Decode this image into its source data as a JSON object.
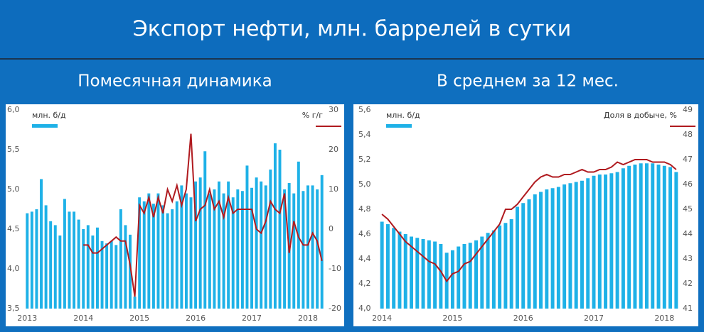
{
  "header": {
    "title": "Экспорт нефти, млн. баррелей в сутки"
  },
  "chart_data": [
    {
      "type": "bar",
      "title": "Помесячная динамика",
      "categories": [
        "2013",
        null,
        null,
        null,
        null,
        null,
        null,
        null,
        null,
        null,
        null,
        null,
        "2014",
        null,
        null,
        null,
        null,
        null,
        null,
        null,
        null,
        null,
        null,
        null,
        "2015",
        null,
        null,
        null,
        null,
        null,
        null,
        null,
        null,
        null,
        null,
        null,
        "2016",
        null,
        null,
        null,
        null,
        null,
        null,
        null,
        null,
        null,
        null,
        null,
        "2017",
        null,
        null,
        null,
        null,
        null,
        null,
        null,
        null,
        null,
        null,
        null,
        "2018",
        null,
        null,
        null
      ],
      "series": [
        {
          "name": "млн. б/д",
          "type": "bar",
          "color": "#1eb1e7",
          "values": [
            4.7,
            4.72,
            4.75,
            5.13,
            4.8,
            4.6,
            4.55,
            4.42,
            4.88,
            4.72,
            4.72,
            4.62,
            4.5,
            4.55,
            4.42,
            4.52,
            4.35,
            4.32,
            4.35,
            4.3,
            4.75,
            4.55,
            4.43,
            3.65,
            4.9,
            4.85,
            4.95,
            4.82,
            4.95,
            4.8,
            4.7,
            4.75,
            4.85,
            5.05,
            4.95,
            4.9,
            5.1,
            5.15,
            5.48,
            4.95,
            5.0,
            5.1,
            4.95,
            5.1,
            4.9,
            5.0,
            4.98,
            5.3,
            5.02,
            5.15,
            5.1,
            5.05,
            5.25,
            5.58,
            5.5,
            5.0,
            5.08,
            4.95,
            5.35,
            4.98,
            5.05,
            5.05,
            5.0,
            5.18
          ]
        },
        {
          "name": "% г/г",
          "type": "line",
          "axis": "y2",
          "color": "#b01a1f",
          "values": [
            null,
            null,
            null,
            null,
            null,
            null,
            null,
            null,
            null,
            null,
            null,
            null,
            -4,
            -4,
            -6,
            -6,
            -5,
            -4,
            -3,
            -2,
            -3,
            -3,
            -9,
            -17,
            6,
            4,
            8,
            3,
            8,
            4,
            10,
            7,
            11,
            6,
            10,
            24,
            2,
            5,
            6,
            10,
            5,
            7,
            3,
            8,
            4,
            5,
            5,
            5,
            5,
            0,
            -1,
            2,
            7,
            5,
            4,
            9,
            -6,
            2,
            -2,
            -4,
            -4,
            -1,
            -3,
            -8
          ]
        }
      ],
      "ylim": [
        3.5,
        6.0
      ],
      "yticks": [
        {
          "value": 3.5,
          "label": "3,5"
        },
        {
          "value": 4.0,
          "label": "4,0"
        },
        {
          "value": 4.5,
          "label": "4,5"
        },
        {
          "value": 5.0,
          "label": "5,0"
        },
        {
          "value": 5.5,
          "label": "5,5"
        },
        {
          "value": 6.0,
          "label": "6,0"
        }
      ],
      "y2lim": [
        -20,
        30
      ],
      "y2ticks": [
        -20,
        -10,
        0,
        10,
        20,
        30
      ],
      "grid": false
    },
    {
      "type": "bar",
      "title": "В среднем за 12 мес.",
      "categories": [
        "2014",
        null,
        null,
        null,
        null,
        null,
        null,
        null,
        null,
        null,
        null,
        null,
        "2015",
        null,
        null,
        null,
        null,
        null,
        null,
        null,
        null,
        null,
        null,
        null,
        "2016",
        null,
        null,
        null,
        null,
        null,
        null,
        null,
        null,
        null,
        null,
        null,
        "2017",
        null,
        null,
        null,
        null,
        null,
        null,
        null,
        null,
        null,
        null,
        null,
        "2018",
        null,
        null
      ],
      "series": [
        {
          "name": "млн. б/д",
          "type": "bar",
          "color": "#1eb1e7",
          "values": [
            4.7,
            4.68,
            4.65,
            4.62,
            4.6,
            4.58,
            4.57,
            4.56,
            4.55,
            4.54,
            4.52,
            4.45,
            4.47,
            4.5,
            4.52,
            4.53,
            4.55,
            4.58,
            4.61,
            4.63,
            4.67,
            4.69,
            4.72,
            4.82,
            4.85,
            4.88,
            4.92,
            4.94,
            4.96,
            4.97,
            4.98,
            5.0,
            5.01,
            5.02,
            5.03,
            5.05,
            5.07,
            5.08,
            5.08,
            5.09,
            5.1,
            5.13,
            5.15,
            5.16,
            5.17,
            5.17,
            5.17,
            5.16,
            5.15,
            5.14,
            5.1
          ]
        },
        {
          "name": "Доля в добыче, %",
          "type": "line",
          "axis": "y2",
          "color": "#b01a1f",
          "values": [
            44.8,
            44.6,
            44.3,
            44.0,
            43.7,
            43.5,
            43.3,
            43.1,
            42.9,
            42.8,
            42.5,
            42.1,
            42.4,
            42.5,
            42.8,
            42.9,
            43.2,
            43.5,
            43.8,
            44.1,
            44.4,
            45.0,
            45.0,
            45.2,
            45.5,
            45.8,
            46.1,
            46.3,
            46.4,
            46.3,
            46.3,
            46.4,
            46.4,
            46.5,
            46.6,
            46.5,
            46.5,
            46.6,
            46.6,
            46.7,
            46.9,
            46.8,
            46.9,
            47.0,
            47.0,
            47.0,
            46.9,
            46.9,
            46.9,
            46.8,
            46.6
          ]
        }
      ],
      "ylim": [
        4.0,
        5.6
      ],
      "yticks": [
        {
          "value": 4.0,
          "label": "4,0"
        },
        {
          "value": 4.2,
          "label": "4,2"
        },
        {
          "value": 4.4,
          "label": "4,4"
        },
        {
          "value": 4.6,
          "label": "4,6"
        },
        {
          "value": 4.8,
          "label": "4,8"
        },
        {
          "value": 5.0,
          "label": "5,0"
        },
        {
          "value": 5.2,
          "label": "5,2"
        },
        {
          "value": 5.4,
          "label": "5,4"
        },
        {
          "value": 5.6,
          "label": "5,6"
        }
      ],
      "y2lim": [
        41,
        49
      ],
      "y2ticks": [
        41,
        42,
        43,
        44,
        45,
        46,
        47,
        48,
        49
      ],
      "grid": false
    }
  ]
}
